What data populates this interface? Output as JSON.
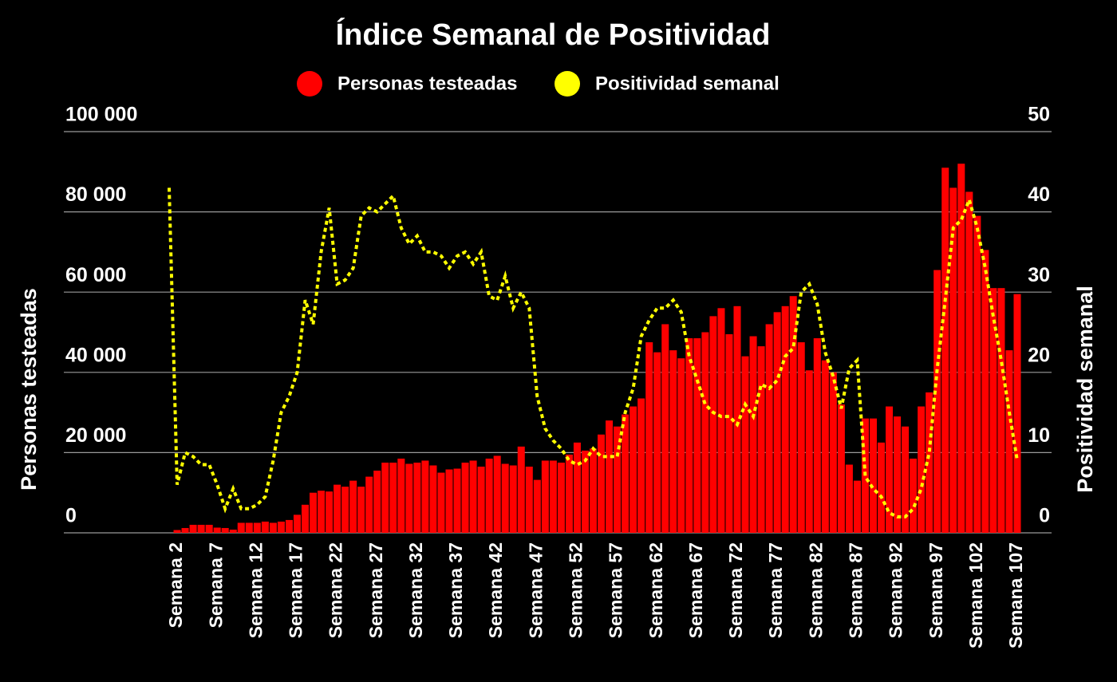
{
  "chart_data": {
    "type": "combo",
    "title": "Índice Semanal de Positividad",
    "y_label": "Personas testeadas",
    "y2_label": "Positividad semanal",
    "categories": [
      null,
      "Semana 2",
      null,
      null,
      null,
      null,
      "Semana 7",
      null,
      null,
      null,
      null,
      "Semana 12",
      null,
      null,
      null,
      null,
      "Semana 17",
      null,
      null,
      null,
      null,
      "Semana 22",
      null,
      null,
      null,
      null,
      "Semana 27",
      null,
      null,
      null,
      null,
      "Semana 32",
      null,
      null,
      null,
      null,
      "Semana 37",
      null,
      null,
      null,
      null,
      "Semana 42",
      null,
      null,
      null,
      null,
      "Semana 47",
      null,
      null,
      null,
      null,
      "Semana 52",
      null,
      null,
      null,
      null,
      "Semana 57",
      null,
      null,
      null,
      null,
      "Semana 62",
      null,
      null,
      null,
      null,
      "Semana 67",
      null,
      null,
      null,
      null,
      "Semana 72",
      null,
      null,
      null,
      null,
      "Semana 77",
      null,
      null,
      null,
      null,
      "Semana 82",
      null,
      null,
      null,
      null,
      "Semana 87",
      null,
      null,
      null,
      null,
      "Semana 92",
      null,
      null,
      null,
      null,
      "Semana 97",
      null,
      null,
      null,
      null,
      "Semana 102",
      null,
      null,
      null,
      null,
      "Semana 107"
    ],
    "series": [
      {
        "name": "Personas testeadas",
        "type": "bar",
        "color": "#ff0000",
        "values": [
          0,
          700,
          1200,
          2000,
          2000,
          2000,
          1300,
          1200,
          800,
          2500,
          2500,
          2500,
          2800,
          2500,
          2800,
          3200,
          4500,
          7000,
          10000,
          10500,
          10300,
          12000,
          11500,
          13000,
          11500,
          14000,
          15500,
          17500,
          17500,
          18500,
          17200,
          17500,
          18000,
          16800,
          15000,
          15800,
          16000,
          17500,
          18000,
          16500,
          18500,
          19200,
          17200,
          16800,
          21500,
          16500,
          13200,
          18000,
          18000,
          17500,
          19500,
          22500,
          20500,
          21000,
          24500,
          28000,
          26500,
          29500,
          31500,
          33500,
          47500,
          45000,
          52000,
          45500,
          43500,
          48500,
          48500,
          50000,
          54000,
          56000,
          49500,
          56500,
          44000,
          49000,
          46500,
          52000,
          55000,
          56500,
          59000,
          47500,
          40500,
          48500,
          43000,
          40000,
          32000,
          17000,
          13000,
          28500,
          28500,
          22500,
          31500,
          29000,
          26500,
          18500,
          31500,
          35000,
          65500,
          91000,
          86000,
          92000,
          85000,
          79000,
          70500,
          61000,
          61000,
          45500,
          59500
        ]
      },
      {
        "name": "Positividad semanal",
        "type": "line",
        "axis": "y2",
        "color": "#ffff00",
        "values": [
          43,
          6,
          10,
          9.5,
          8.5,
          8.5,
          6,
          3,
          5.5,
          3,
          3,
          3.5,
          4.5,
          9,
          15,
          17,
          20,
          29,
          26,
          35,
          40.5,
          31,
          31.5,
          33,
          39.5,
          40.5,
          40,
          41,
          42,
          38,
          36,
          37,
          35,
          35,
          34.5,
          33,
          34.5,
          35,
          33.5,
          35,
          29.5,
          29,
          32,
          28,
          30,
          28,
          17,
          13,
          11.5,
          10.5,
          9,
          8.5,
          9,
          10.5,
          9.5,
          9.5,
          9.5,
          15,
          18,
          24.5,
          26.5,
          28,
          28,
          29,
          27.5,
          22,
          19,
          16,
          15,
          14.5,
          14.5,
          13.5,
          16,
          14.5,
          18.5,
          18,
          19,
          22,
          23,
          30,
          31,
          28.5,
          22.5,
          19.5,
          15.5,
          20.5,
          21.5,
          7,
          5.5,
          4.5,
          2.5,
          2,
          2,
          3,
          5.5,
          10,
          20.5,
          29,
          38,
          39,
          41.5,
          38,
          33,
          27,
          21.5,
          15,
          9
        ]
      }
    ],
    "ylim": [
      0,
      100000
    ],
    "yticks": [
      0,
      {
        "value": 20000,
        "label": "20 000"
      },
      {
        "value": 40000,
        "label": "40 000"
      },
      {
        "value": 60000,
        "label": "60 000"
      },
      {
        "value": 80000,
        "label": "80 000"
      },
      {
        "value": 100000,
        "label": "100 000"
      }
    ],
    "y2lim": [
      0,
      50
    ],
    "y2ticks": [
      0,
      10,
      20,
      30,
      40,
      50
    ],
    "grid": true
  }
}
